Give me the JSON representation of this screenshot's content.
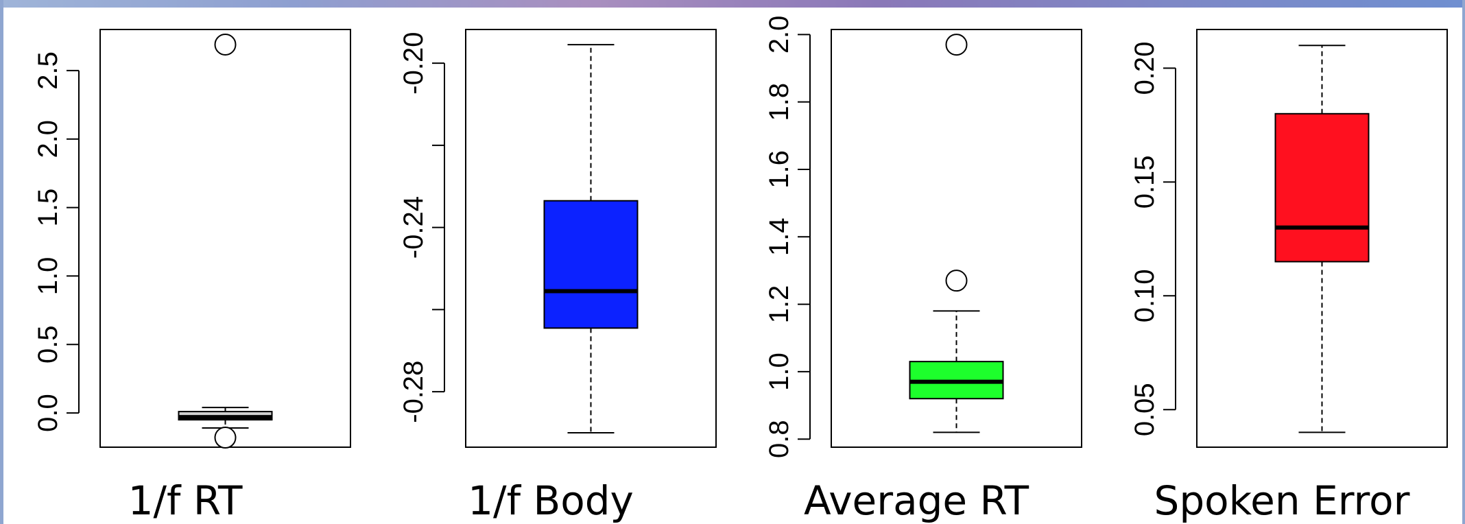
{
  "theme": {
    "top_bar_colors": [
      "#9fb4d8",
      "#8e9fd0",
      "#a98fbf",
      "#8a78b8",
      "#7e88c6",
      "#6f8fd0"
    ],
    "side_bar_color": "#8fa6d0"
  },
  "chart_data": [
    {
      "type": "boxplot",
      "caption": "1/f RT",
      "box_color": "#d0d0d0",
      "ylim": [
        -0.25,
        2.8
      ],
      "yticks": [
        0.0,
        0.5,
        1.0,
        1.5,
        2.0,
        2.5
      ],
      "ytick_labels": [
        "0.0",
        "0.5",
        "1.0",
        "1.5",
        "2.0",
        "2.5"
      ],
      "whisker_low": -0.11,
      "q1": -0.05,
      "median": -0.03,
      "q3": 0.01,
      "whisker_high": 0.04,
      "outliers": [
        2.69,
        -0.18
      ]
    },
    {
      "type": "boxplot",
      "caption": "1/f Body",
      "box_color": "#0c22ff",
      "ylim": [
        -0.2935,
        -0.1918
      ],
      "yticks": [
        -0.2,
        -0.22,
        -0.24,
        -0.26,
        -0.28
      ],
      "ytick_labels": [
        "-0.20",
        "",
        "-0.24",
        "",
        "-0.28"
      ],
      "whisker_low": -0.29,
      "q1": -0.2645,
      "median": -0.2555,
      "q3": -0.2335,
      "whisker_high": -0.1955,
      "outliers": []
    },
    {
      "type": "boxplot",
      "caption": "Average RT",
      "box_color": "#1dff2c",
      "ylim": [
        0.776,
        2.015
      ],
      "yticks": [
        0.8,
        1.0,
        1.2,
        1.4,
        1.6,
        1.8,
        2.0
      ],
      "ytick_labels": [
        "0.8",
        "1.0",
        "1.2",
        "1.4",
        "1.6",
        "1.8",
        "2.0"
      ],
      "whisker_low": 0.82,
      "q1": 0.92,
      "median": 0.97,
      "q3": 1.03,
      "whisker_high": 1.18,
      "outliers": [
        1.97,
        1.27
      ]
    },
    {
      "type": "boxplot",
      "caption": "Spoken Error",
      "box_color": "#ff101f",
      "ylim": [
        0.0335,
        0.217
      ],
      "yticks": [
        0.05,
        0.1,
        0.15,
        0.2
      ],
      "ytick_labels": [
        "0.05",
        "0.10",
        "0.15",
        "0.20"
      ],
      "whisker_low": 0.04,
      "q1": 0.115,
      "median": 0.13,
      "q3": 0.18,
      "whisker_high": 0.21,
      "outliers": []
    }
  ]
}
